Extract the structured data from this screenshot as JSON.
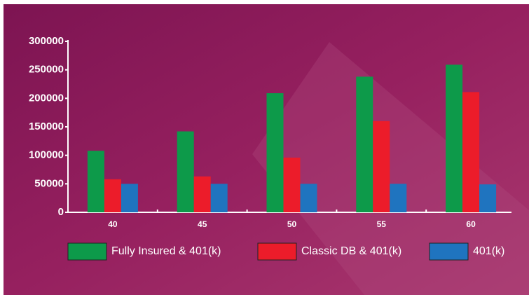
{
  "chart_data": {
    "type": "bar",
    "categories": [
      "40",
      "45",
      "50",
      "55",
      "60"
    ],
    "series": [
      {
        "name": "Fully Insured & 401(k)",
        "color": "#0d9a4a",
        "values": [
          108000,
          142000,
          209000,
          238000,
          259000
        ]
      },
      {
        "name": "Classic DB & 401(k)",
        "color": "#ec1c2a",
        "values": [
          58000,
          63000,
          96000,
          160000,
          211000
        ]
      },
      {
        "name": "401(k)",
        "color": "#1f74bf",
        "values": [
          50000,
          50000,
          50000,
          50000,
          49000
        ]
      }
    ],
    "ylim": [
      0,
      300000
    ],
    "yticks": [
      0,
      50000,
      100000,
      150000,
      200000,
      250000,
      300000
    ],
    "grid": false
  }
}
